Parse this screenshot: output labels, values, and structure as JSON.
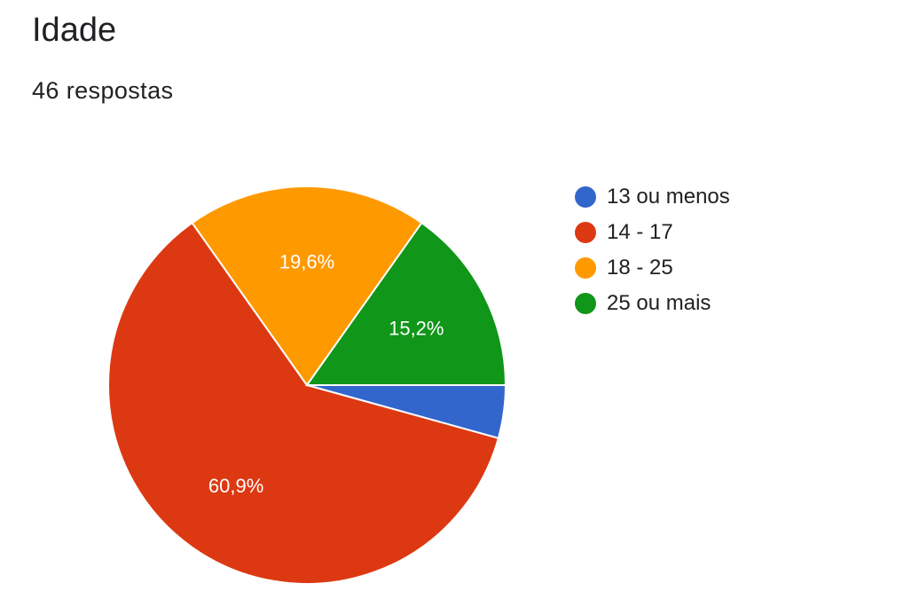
{
  "header": {
    "title": "Idade",
    "responses": "46 respostas"
  },
  "chart_data": {
    "type": "pie",
    "categories": [
      "13 ou menos",
      "14 - 17",
      "18 - 25",
      "25 ou mais"
    ],
    "values": [
      4.3,
      60.9,
      19.6,
      15.2
    ],
    "value_labels": [
      "",
      "60,9%",
      "19,6%",
      "15,2%"
    ],
    "colors": [
      "#3366cc",
      "#dc3912",
      "#ff9900",
      "#109618"
    ],
    "start_angle": "3 o'clock",
    "direction": "clockwise",
    "legend_position": "right"
  }
}
